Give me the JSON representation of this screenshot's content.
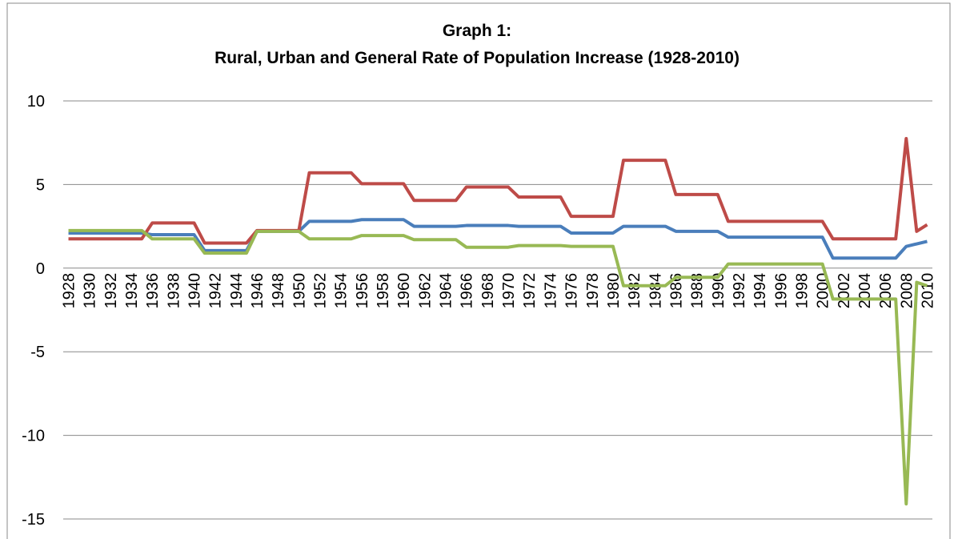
{
  "chart_data": {
    "type": "line",
    "title": [
      "Graph 1:",
      "Rural, Urban and General Rate of Population Increase (1928-2010)"
    ],
    "categories": [
      "1928",
      null,
      "1930",
      null,
      "1932",
      null,
      "1934",
      null,
      "1936",
      null,
      "1938",
      null,
      "1940",
      null,
      "1942",
      null,
      "1944",
      null,
      "1946",
      null,
      "1948",
      null,
      "1950",
      null,
      "1952",
      null,
      "1954",
      null,
      "1956",
      null,
      "1958",
      null,
      "1960",
      null,
      "1962",
      null,
      "1964",
      null,
      "1966",
      null,
      "1968",
      null,
      "1970",
      null,
      "1972",
      null,
      "1974",
      null,
      "1976",
      null,
      "1978",
      null,
      "1980",
      null,
      "1982",
      null,
      "1984",
      null,
      "1986",
      null,
      "1988",
      null,
      "1990",
      null,
      "1992",
      null,
      "1994",
      null,
      "1996",
      null,
      "1998",
      null,
      "2000",
      null,
      "2002",
      null,
      "2004",
      null,
      "2006",
      null,
      "2008",
      null,
      "2010"
    ],
    "series": [
      {
        "color": "#4a7ebb",
        "values": [
          2.1,
          2.1,
          2.1,
          2.1,
          2.1,
          2.1,
          2.1,
          2.1,
          2.0,
          2.0,
          2.0,
          2.0,
          2.0,
          1.05,
          1.05,
          1.05,
          1.05,
          1.05,
          2.2,
          2.2,
          2.2,
          2.2,
          2.2,
          2.8,
          2.8,
          2.8,
          2.8,
          2.8,
          2.9,
          2.9,
          2.9,
          2.9,
          2.9,
          2.5,
          2.5,
          2.5,
          2.5,
          2.5,
          2.55,
          2.55,
          2.55,
          2.55,
          2.55,
          2.5,
          2.5,
          2.5,
          2.5,
          2.5,
          2.1,
          2.1,
          2.1,
          2.1,
          2.1,
          2.5,
          2.5,
          2.5,
          2.5,
          2.5,
          2.2,
          2.2,
          2.2,
          2.2,
          2.2,
          1.85,
          1.85,
          1.85,
          1.85,
          1.85,
          1.85,
          1.85,
          1.85,
          1.85,
          1.85,
          0.6,
          0.6,
          0.6,
          0.6,
          0.6,
          0.6,
          0.6,
          1.3,
          1.45,
          1.6
        ]
      },
      {
        "color": "#be4b48",
        "values": [
          1.75,
          1.75,
          1.75,
          1.75,
          1.75,
          1.75,
          1.75,
          1.75,
          2.7,
          2.7,
          2.7,
          2.7,
          2.7,
          1.5,
          1.5,
          1.5,
          1.5,
          1.5,
          2.25,
          2.25,
          2.25,
          2.25,
          2.25,
          5.7,
          5.7,
          5.7,
          5.7,
          5.7,
          5.05,
          5.05,
          5.05,
          5.05,
          5.05,
          4.05,
          4.05,
          4.05,
          4.05,
          4.05,
          4.85,
          4.85,
          4.85,
          4.85,
          4.85,
          4.25,
          4.25,
          4.25,
          4.25,
          4.25,
          3.1,
          3.1,
          3.1,
          3.1,
          3.1,
          6.45,
          6.45,
          6.45,
          6.45,
          6.45,
          4.4,
          4.4,
          4.4,
          4.4,
          4.4,
          2.8,
          2.8,
          2.8,
          2.8,
          2.8,
          2.8,
          2.8,
          2.8,
          2.8,
          2.8,
          1.75,
          1.75,
          1.75,
          1.75,
          1.75,
          1.75,
          1.75,
          7.75,
          2.2,
          2.6
        ]
      },
      {
        "color": "#98b954",
        "values": [
          2.25,
          2.25,
          2.25,
          2.25,
          2.25,
          2.25,
          2.25,
          2.25,
          1.75,
          1.75,
          1.75,
          1.75,
          1.75,
          0.9,
          0.9,
          0.9,
          0.9,
          0.9,
          2.2,
          2.2,
          2.2,
          2.2,
          2.2,
          1.75,
          1.75,
          1.75,
          1.75,
          1.75,
          1.95,
          1.95,
          1.95,
          1.95,
          1.95,
          1.7,
          1.7,
          1.7,
          1.7,
          1.7,
          1.25,
          1.25,
          1.25,
          1.25,
          1.25,
          1.35,
          1.35,
          1.35,
          1.35,
          1.35,
          1.3,
          1.3,
          1.3,
          1.3,
          1.3,
          -1.05,
          -1.05,
          -1.05,
          -1.05,
          -1.05,
          -0.55,
          -0.55,
          -0.55,
          -0.55,
          -0.55,
          0.25,
          0.25,
          0.25,
          0.25,
          0.25,
          0.25,
          0.25,
          0.25,
          0.25,
          0.25,
          -1.85,
          -1.85,
          -1.85,
          -1.85,
          -1.85,
          -1.85,
          -1.85,
          -14.1,
          -0.85,
          -1.05
        ]
      }
    ],
    "ylim": [
      -15,
      10
    ],
    "yticks": [
      -15,
      -10,
      -5,
      0,
      5,
      10
    ],
    "grid": true
  }
}
